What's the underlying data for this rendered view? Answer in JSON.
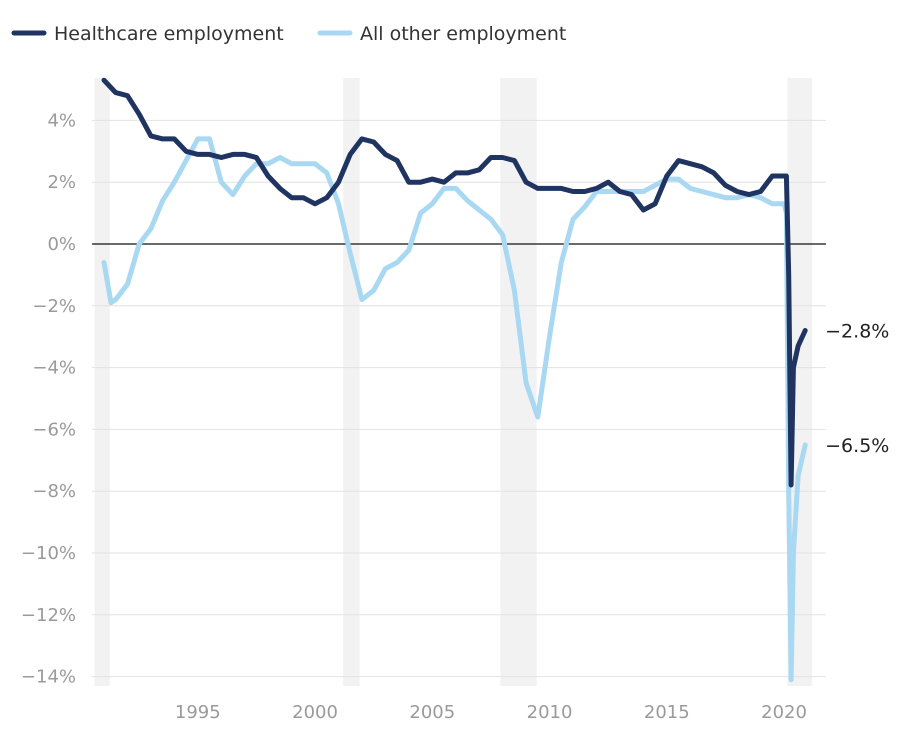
{
  "chart_data": {
    "type": "line",
    "title": "",
    "xlabel": "",
    "ylabel": "",
    "xlim": [
      1990.5,
      2021.5
    ],
    "ylim": [
      -14,
      5.5
    ],
    "grid": true,
    "legend_placement": "top-left",
    "x_ticks": [
      "1995",
      "2000",
      "2005",
      "2010",
      "2015",
      "2020"
    ],
    "x_tick_values": [
      1995,
      2000,
      2005,
      2010,
      2015,
      2020
    ],
    "y_ticks": [
      "4%",
      "2%",
      "0%",
      "−2%",
      "−4%",
      "−6%",
      "−8%",
      "−10%",
      "−12%",
      "−14%"
    ],
    "y_tick_values": [
      4,
      2,
      0,
      -2,
      -4,
      -6,
      -8,
      -10,
      -12,
      -14
    ],
    "recessions": [
      [
        1990.6,
        1991.25
      ],
      [
        2001.2,
        2001.9
      ],
      [
        2007.9,
        2009.45
      ],
      [
        2020.15,
        2021.2
      ]
    ],
    "series": [
      {
        "name": "Healthcare employment",
        "color": "#1f3461",
        "end_label": "−2.8%",
        "x": [
          1991.0,
          1991.5,
          1992,
          1992.5,
          1993,
          1993.5,
          1994,
          1994.5,
          1995,
          1995.5,
          1996,
          1996.5,
          1997,
          1997.5,
          1998,
          1998.5,
          1999,
          1999.5,
          2000,
          2000.5,
          2001,
          2001.5,
          2002,
          2002.5,
          2003,
          2003.5,
          2004,
          2004.5,
          2005,
          2005.5,
          2006,
          2006.5,
          2007,
          2007.5,
          2008,
          2008.5,
          2009,
          2009.5,
          2010,
          2010.5,
          2011,
          2011.5,
          2012,
          2012.5,
          2013,
          2013.5,
          2014,
          2014.5,
          2015,
          2015.5,
          2016,
          2016.5,
          2017,
          2017.5,
          2018,
          2018.5,
          2019,
          2019.5,
          2020.0,
          2020.1,
          2020.2,
          2020.3,
          2020.4,
          2020.6,
          2020.9
        ],
        "values": [
          5.3,
          4.9,
          4.8,
          4.2,
          3.5,
          3.4,
          3.4,
          3.0,
          2.9,
          2.9,
          2.8,
          2.9,
          2.9,
          2.8,
          2.2,
          1.8,
          1.5,
          1.5,
          1.3,
          1.5,
          2.0,
          2.9,
          3.4,
          3.3,
          2.9,
          2.7,
          2.0,
          2.0,
          2.1,
          2.0,
          2.3,
          2.3,
          2.4,
          2.8,
          2.8,
          2.7,
          2.0,
          1.8,
          1.8,
          1.8,
          1.7,
          1.7,
          1.8,
          2.0,
          1.7,
          1.6,
          1.1,
          1.3,
          2.2,
          2.7,
          2.6,
          2.5,
          2.3,
          1.9,
          1.7,
          1.6,
          1.7,
          2.2,
          2.2,
          2.2,
          -1.0,
          -7.8,
          -4.0,
          -3.3,
          -2.8
        ]
      },
      {
        "name": "All other employment",
        "color": "#a9d8f2",
        "end_label": "−6.5%",
        "x": [
          1991.0,
          1991.3,
          1991.5,
          1992,
          1992.5,
          1993,
          1993.5,
          1994,
          1994.5,
          1995,
          1995.5,
          1996,
          1996.5,
          1997,
          1997.5,
          1998,
          1998.5,
          1999,
          1999.5,
          2000,
          2000.5,
          2001,
          2001.5,
          2002,
          2002.5,
          2003,
          2003.5,
          2004,
          2004.5,
          2005,
          2005.5,
          2006,
          2006.5,
          2007,
          2007.5,
          2008,
          2008.5,
          2009,
          2009.5,
          2010,
          2010.5,
          2011,
          2011.5,
          2012,
          2012.5,
          2013,
          2013.5,
          2014,
          2014.5,
          2015,
          2015.5,
          2016,
          2016.5,
          2017,
          2017.5,
          2018,
          2018.5,
          2019,
          2019.5,
          2020.0,
          2020.1,
          2020.2,
          2020.3,
          2020.4,
          2020.6,
          2020.9
        ],
        "values": [
          -0.6,
          -1.9,
          -1.8,
          -1.3,
          0.0,
          0.5,
          1.4,
          2.0,
          2.7,
          3.4,
          3.4,
          2.0,
          1.6,
          2.2,
          2.6,
          2.6,
          2.8,
          2.6,
          2.6,
          2.6,
          2.3,
          1.3,
          -0.3,
          -1.8,
          -1.5,
          -0.8,
          -0.6,
          -0.2,
          1.0,
          1.3,
          1.8,
          1.8,
          1.4,
          1.1,
          0.8,
          0.3,
          -1.5,
          -4.5,
          -5.6,
          -3.0,
          -0.6,
          0.8,
          1.2,
          1.7,
          1.7,
          1.7,
          1.7,
          1.7,
          1.9,
          2.1,
          2.1,
          1.8,
          1.7,
          1.6,
          1.5,
          1.5,
          1.6,
          1.5,
          1.3,
          1.3,
          1.0,
          -8.0,
          -14.1,
          -10.0,
          -7.5,
          -6.5
        ]
      }
    ]
  }
}
